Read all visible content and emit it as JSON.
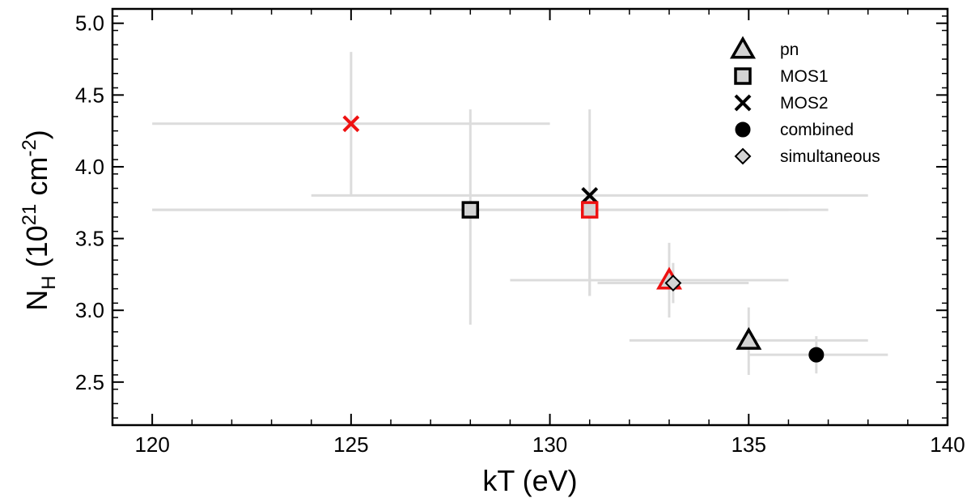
{
  "chart_data": {
    "type": "scatter",
    "xlabel": "kT (eV)",
    "ylabel": "N",
    "ylabel_subscript": "H",
    "ylabel_units": {
      "open": " (10",
      "exp1": "21",
      "mid": " cm",
      "exp2": "-2",
      "close": ")"
    },
    "xlim": [
      119,
      140
    ],
    "ylim": [
      2.2,
      5.1
    ],
    "xticks": [
      120,
      125,
      130,
      135,
      140
    ],
    "yticks": [
      2.5,
      3.0,
      3.5,
      4.0,
      4.5,
      5.0
    ],
    "xtick_labels": [
      "120",
      "125",
      "130",
      "135",
      "140"
    ],
    "ytick_labels": [
      "2.5",
      "3.0",
      "3.5",
      "4.0",
      "4.5",
      "5.0"
    ],
    "legend_position": "top-right",
    "colors": {
      "errorbar": "#dcdcdc",
      "marker_fill": "#d3d3d3",
      "black": "#000000",
      "red": "#ee1111"
    },
    "legend": [
      {
        "label": "pn",
        "marker": "triangle"
      },
      {
        "label": "MOS1",
        "marker": "square"
      },
      {
        "label": "MOS2",
        "marker": "cross"
      },
      {
        "label": "combined",
        "marker": "circle"
      },
      {
        "label": "simultaneous",
        "marker": "diamond"
      }
    ],
    "points": [
      {
        "series": "MOS2",
        "color": "red",
        "marker": "cross",
        "x": 125.0,
        "y": 4.3,
        "xerr": [
          120.0,
          130.0
        ],
        "yerr": [
          3.8,
          4.8
        ]
      },
      {
        "series": "MOS1",
        "color": "black",
        "marker": "square",
        "x": 128.0,
        "y": 3.7,
        "xerr": [
          120.0,
          136.0
        ],
        "yerr": [
          2.9,
          4.4
        ]
      },
      {
        "series": "MOS2",
        "color": "black",
        "marker": "cross",
        "x": 131.0,
        "y": 3.8,
        "xerr": [
          124.0,
          138.0
        ],
        "yerr": [
          3.1,
          4.4
        ]
      },
      {
        "series": "MOS1",
        "color": "red",
        "marker": "square",
        "x": 131.0,
        "y": 3.7,
        "xerr": [
          120.0,
          137.0
        ],
        "yerr": [
          3.1,
          3.7
        ]
      },
      {
        "series": "pn",
        "color": "red",
        "marker": "triangle",
        "x": 133.0,
        "y": 3.21,
        "xerr": [
          129.0,
          136.0
        ],
        "yerr": [
          2.95,
          3.47
        ]
      },
      {
        "series": "simultaneous",
        "color": "black",
        "marker": "diamond",
        "x": 133.1,
        "y": 3.19,
        "xerr": [
          131.2,
          135.0
        ],
        "yerr": [
          3.05,
          3.33
        ]
      },
      {
        "series": "pn",
        "color": "black",
        "marker": "triangle",
        "x": 135.0,
        "y": 2.79,
        "xerr": [
          132.0,
          138.0
        ],
        "yerr": [
          2.55,
          3.02
        ]
      },
      {
        "series": "combined",
        "color": "black",
        "marker": "circle",
        "x": 136.7,
        "y": 2.69,
        "xerr": [
          135.0,
          138.5
        ],
        "yerr": [
          2.56,
          2.82
        ]
      }
    ]
  }
}
